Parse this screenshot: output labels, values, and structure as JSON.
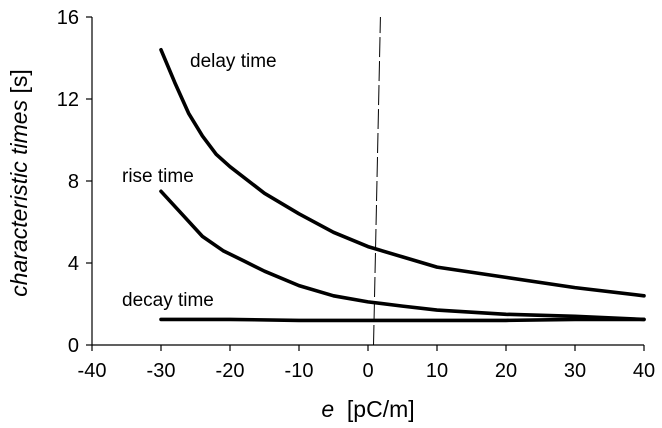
{
  "chart_data": {
    "type": "line",
    "xlabel_var": "e",
    "xlabel_unit": "[pC/m]",
    "ylabel": "characteristic times [s]",
    "xlim": [
      -40,
      40
    ],
    "ylim": [
      0,
      16
    ],
    "xticks": [
      -40,
      -30,
      -20,
      -10,
      0,
      10,
      20,
      30,
      40
    ],
    "yticks": [
      0,
      4,
      8,
      12,
      16
    ],
    "grid": false,
    "legend": "none",
    "series": [
      {
        "name": "delay time",
        "x": [
          -30,
          -28,
          -26,
          -24,
          -22,
          -20,
          -15,
          -10,
          -5,
          0,
          5,
          10,
          20,
          30,
          40
        ],
        "y": [
          14.4,
          12.8,
          11.3,
          10.2,
          9.3,
          8.7,
          7.4,
          6.4,
          5.5,
          4.8,
          4.3,
          3.8,
          3.3,
          2.8,
          2.4
        ]
      },
      {
        "name": "rise time",
        "x": [
          -30,
          -27,
          -24,
          -21,
          -18,
          -15,
          -10,
          -5,
          0,
          5,
          10,
          20,
          30,
          40
        ],
        "y": [
          7.5,
          6.4,
          5.3,
          4.6,
          4.1,
          3.6,
          2.9,
          2.4,
          2.1,
          1.9,
          1.7,
          1.5,
          1.4,
          1.25
        ]
      },
      {
        "name": "decay time",
        "x": [
          -30,
          -20,
          -10,
          0,
          10,
          20,
          30,
          40
        ],
        "y": [
          1.25,
          1.25,
          1.2,
          1.2,
          1.2,
          1.2,
          1.25,
          1.25
        ]
      }
    ],
    "reference_line": {
      "x_start": 0.8,
      "x_end": 1.8,
      "y_start": 0,
      "y_end": 16,
      "style": "dashed"
    },
    "series_labels": [
      "delay time",
      "rise time",
      "decay time"
    ]
  }
}
